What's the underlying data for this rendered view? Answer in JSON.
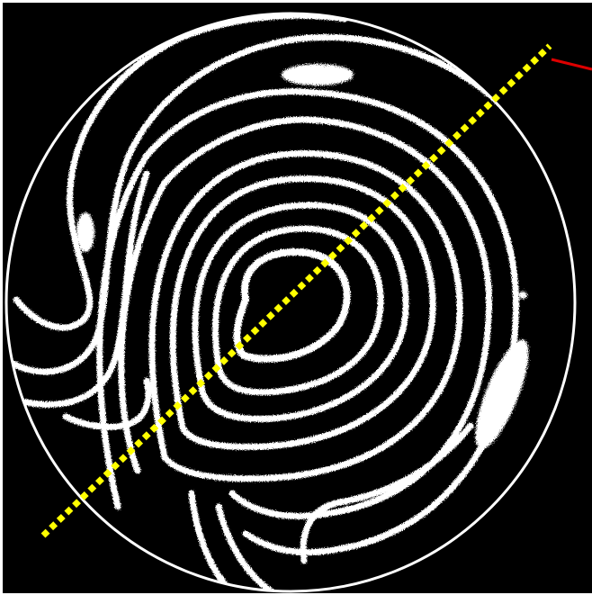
{
  "image": {
    "kind": "interferogram",
    "background_color": "#000000",
    "fringe_color": "#ffffff",
    "measurement_line_color": "#ffff00",
    "marker_color": "#dd0000"
  }
}
